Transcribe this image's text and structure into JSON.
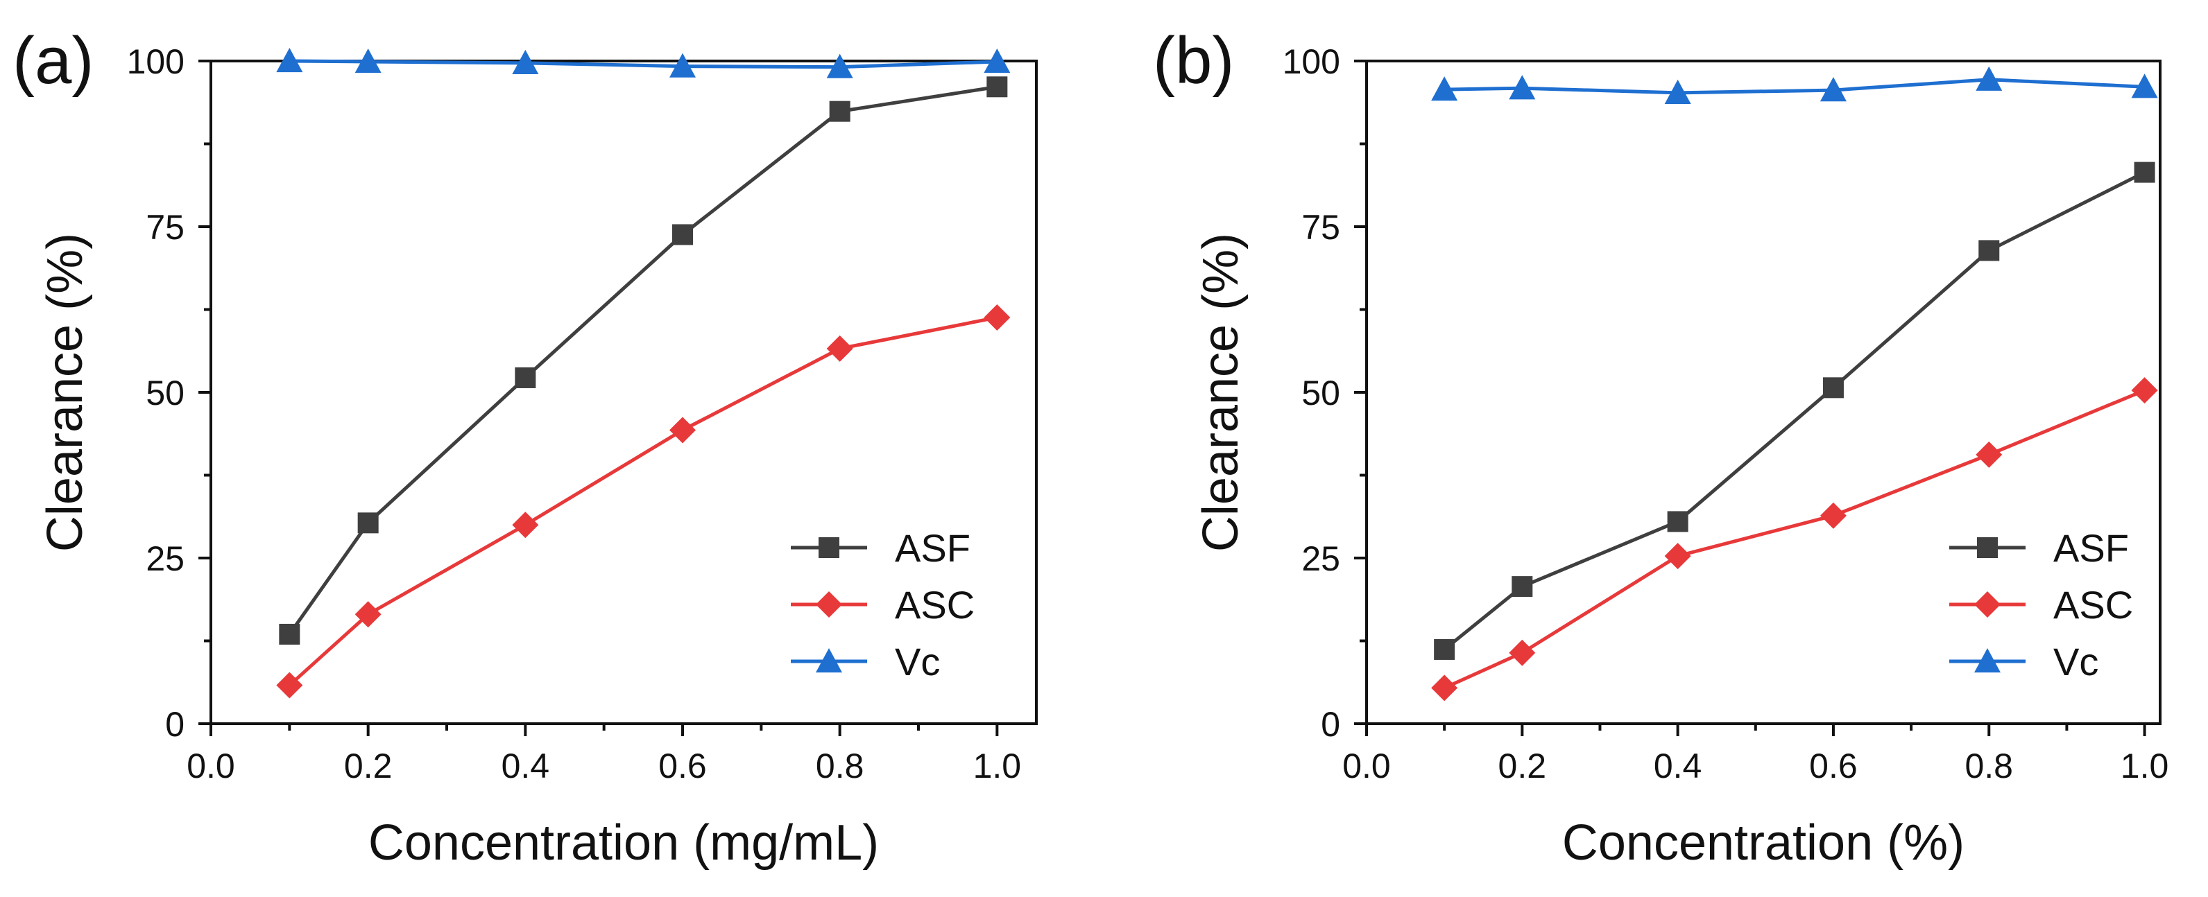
{
  "chart_data": [
    {
      "type": "line",
      "panel_label": "(a)",
      "xlabel": "Concentration (mg/mL)",
      "ylabel": "Clearance (%)",
      "xlim": [
        0.0,
        1.05
      ],
      "ylim": [
        0,
        100
      ],
      "xticks": [
        0.0,
        0.2,
        0.4,
        0.6,
        0.8,
        1.0
      ],
      "xtick_labels": [
        "0.0",
        "0.2",
        "0.4",
        "0.6",
        "0.8",
        "1.0"
      ],
      "yticks": [
        0,
        25,
        50,
        75,
        100
      ],
      "ytick_labels": [
        "0",
        "25",
        "50",
        "75",
        "100"
      ],
      "legend_position": "bottom-right",
      "x": [
        0.1,
        0.2,
        0.4,
        0.6,
        0.8,
        1.0
      ],
      "series": [
        {
          "name": "ASF",
          "color": "#3f3f3f",
          "marker": "square",
          "values": [
            13.5,
            30.3,
            52.2,
            73.8,
            92.4,
            96.1
          ]
        },
        {
          "name": "ASC",
          "color": "#e8393a",
          "marker": "diamond",
          "values": [
            5.8,
            16.5,
            30.0,
            44.3,
            56.6,
            61.3
          ]
        },
        {
          "name": "Vc",
          "color": "#1f6fd1",
          "marker": "triangle",
          "values": [
            100.0,
            99.9,
            99.7,
            99.2,
            99.1,
            99.9
          ]
        }
      ]
    },
    {
      "type": "line",
      "panel_label": "(b)",
      "xlabel": "Concentration (%)",
      "ylabel": "Clearance (%)",
      "xlim": [
        0.0,
        1.02
      ],
      "ylim": [
        0,
        100
      ],
      "xticks": [
        0.0,
        0.2,
        0.4,
        0.6,
        0.8,
        1.0
      ],
      "xtick_labels": [
        "0.0",
        "0.2",
        "0.4",
        "0.6",
        "0.8",
        "1.0"
      ],
      "yticks": [
        0,
        25,
        50,
        75,
        100
      ],
      "ytick_labels": [
        "0",
        "25",
        "50",
        "75",
        "100"
      ],
      "legend_position": "bottom-right",
      "x": [
        0.1,
        0.2,
        0.4,
        0.6,
        0.8,
        1.0
      ],
      "series": [
        {
          "name": "ASF",
          "color": "#3f3f3f",
          "marker": "square",
          "values": [
            11.2,
            20.7,
            30.5,
            50.7,
            71.4,
            83.2
          ]
        },
        {
          "name": "ASC",
          "color": "#e8393a",
          "marker": "diamond",
          "values": [
            5.4,
            10.7,
            25.3,
            31.4,
            40.6,
            50.3
          ]
        },
        {
          "name": "Vc",
          "color": "#1f6fd1",
          "marker": "triangle",
          "values": [
            95.7,
            95.9,
            95.2,
            95.6,
            97.2,
            96.1
          ]
        }
      ]
    }
  ]
}
